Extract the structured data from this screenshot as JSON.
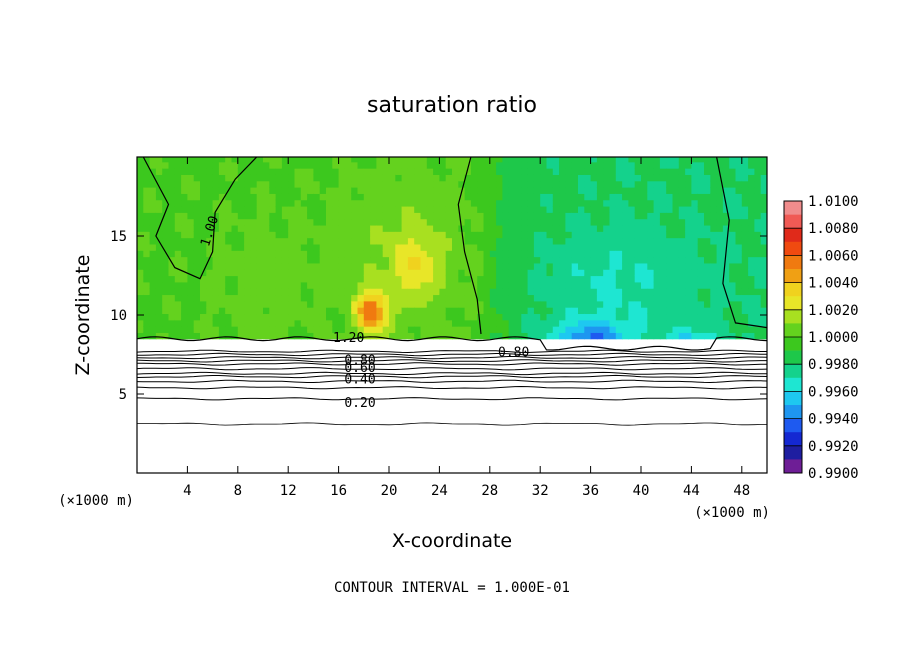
{
  "chart_data": {
    "type": "heatmap",
    "title": "saturation ratio",
    "xlabel": "X-coordinate",
    "ylabel": "Z-coordinate",
    "x_unit_label": "(×1000 m)",
    "z_unit_label": "(×1000 m)",
    "xlim": [
      0,
      50
    ],
    "ylim": [
      0,
      20
    ],
    "x_ticks": [
      4,
      8,
      12,
      16,
      20,
      24,
      28,
      32,
      36,
      40,
      44,
      48
    ],
    "y_ticks": [
      5,
      10,
      15
    ],
    "note": "CONTOUR INTERVAL = 1.000E-01",
    "colorbar": {
      "levels": [
        "1.0100",
        "1.0080",
        "1.0060",
        "1.0040",
        "1.0020",
        "1.0000",
        "0.9980",
        "0.9960",
        "0.9940",
        "0.9920",
        "0.9900"
      ],
      "bands": [
        {
          "low": 1.009,
          "high": 1.01,
          "color": "#f08c8c"
        },
        {
          "low": 1.008,
          "high": 1.009,
          "color": "#f05a55"
        },
        {
          "low": 1.007,
          "high": 1.008,
          "color": "#e02a1a"
        },
        {
          "low": 1.006,
          "high": 1.007,
          "color": "#f04a10"
        },
        {
          "low": 1.005,
          "high": 1.006,
          "color": "#f07a10"
        },
        {
          "low": 1.004,
          "high": 1.005,
          "color": "#f0a014"
        },
        {
          "low": 1.003,
          "high": 1.004,
          "color": "#f0d21e"
        },
        {
          "low": 1.002,
          "high": 1.003,
          "color": "#e8e628"
        },
        {
          "low": 1.001,
          "high": 1.002,
          "color": "#a8e020"
        },
        {
          "low": 1.0,
          "high": 1.001,
          "color": "#64d21e"
        },
        {
          "low": 0.999,
          "high": 1.0,
          "color": "#3cc81e"
        },
        {
          "low": 0.998,
          "high": 0.999,
          "color": "#1ec84a"
        },
        {
          "low": 0.997,
          "high": 0.998,
          "color": "#14d28c"
        },
        {
          "low": 0.996,
          "high": 0.997,
          "color": "#1ee6d2"
        },
        {
          "low": 0.995,
          "high": 0.996,
          "color": "#1ec8f0"
        },
        {
          "low": 0.994,
          "high": 0.995,
          "color": "#1e96f0"
        },
        {
          "low": 0.993,
          "high": 0.994,
          "color": "#1e5af0"
        },
        {
          "low": 0.992,
          "high": 0.993,
          "color": "#1428d2"
        },
        {
          "low": 0.991,
          "high": 0.992,
          "color": "#1e1ea0"
        },
        {
          "low": 0.99,
          "high": 0.991,
          "color": "#6e1e96"
        }
      ]
    },
    "contour_labels": [
      {
        "text": "1.00",
        "x": 5.8,
        "z": 15.3,
        "angle": -72
      },
      {
        "text": "1.20",
        "x": 16.8,
        "z": 8.5,
        "angle": 0
      },
      {
        "text": "0.80",
        "x": 29.9,
        "z": 7.6,
        "angle": 0
      },
      {
        "text": "0.80",
        "x": 17.7,
        "z": 7.1,
        "angle": 0
      },
      {
        "text": "0.60",
        "x": 17.7,
        "z": 6.6,
        "angle": 0
      },
      {
        "text": "0.40",
        "x": 17.7,
        "z": 5.9,
        "angle": 0
      },
      {
        "text": "0.20",
        "x": 17.7,
        "z": 4.4,
        "angle": 0
      }
    ],
    "below_cloud_contours_z": [
      3.1,
      4.7,
      5.4,
      5.8,
      6.1,
      6.3,
      6.6,
      6.9,
      7.1,
      7.3,
      7.5,
      7.7
    ],
    "cloud_base_z": 8.5,
    "features": [
      {
        "kind": "max",
        "x": 18.6,
        "z": 10.2,
        "value": 1.007
      },
      {
        "kind": "min",
        "x": 36.0,
        "z": 8.2,
        "value": 0.9925
      },
      {
        "kind": "min",
        "x": 44.0,
        "z": 8.0,
        "value": 0.9935
      }
    ]
  }
}
